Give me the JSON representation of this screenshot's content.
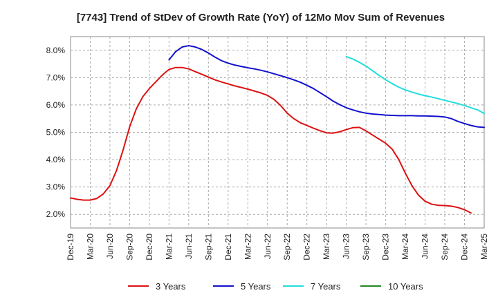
{
  "chart_data": {
    "type": "line",
    "title": "[7743]  Trend of StDev of Growth Rate (YoY) of 12Mo Mov Sum of Revenues",
    "xlabel": "",
    "ylabel": "",
    "ylim": [
      1.5,
      8.5
    ],
    "y_ticks": [
      2.0,
      3.0,
      4.0,
      5.0,
      6.0,
      7.0,
      8.0
    ],
    "y_tick_labels": [
      "2.0%",
      "3.0%",
      "4.0%",
      "5.0%",
      "6.0%",
      "7.0%",
      "8.0%"
    ],
    "x_tick_labels": [
      "Dec-19",
      "Mar-20",
      "Jun-20",
      "Sep-20",
      "Dec-20",
      "Mar-21",
      "Jun-21",
      "Sep-21",
      "Dec-21",
      "Mar-22",
      "Jun-22",
      "Sep-22",
      "Dec-22",
      "Mar-23",
      "Jun-23",
      "Sep-23",
      "Dec-23",
      "Mar-24",
      "Jun-24",
      "Sep-24",
      "Dec-24",
      "Mar-25"
    ],
    "grid": true,
    "legend_position": "bottom",
    "series": [
      {
        "name": "3 Years",
        "color": "#dd1111",
        "start_index": 0,
        "values": [
          2.6,
          2.55,
          2.52,
          2.52,
          2.58,
          2.75,
          3.05,
          3.6,
          4.35,
          5.2,
          5.85,
          6.3,
          6.6,
          6.85,
          7.1,
          7.3,
          7.37,
          7.37,
          7.32,
          7.22,
          7.12,
          7.02,
          6.92,
          6.84,
          6.77,
          6.7,
          6.64,
          6.58,
          6.51,
          6.44,
          6.35,
          6.2,
          5.98,
          5.7,
          5.5,
          5.35,
          5.25,
          5.15,
          5.06,
          4.98,
          4.97,
          5.02,
          5.1,
          5.17,
          5.18,
          5.05,
          4.9,
          4.75,
          4.6,
          4.38,
          4.0,
          3.5,
          3.05,
          2.7,
          2.48,
          2.37,
          2.33,
          2.32,
          2.3,
          2.25,
          2.17,
          2.05
        ]
      },
      {
        "name": "5 Years",
        "color": "#1111cc",
        "start_index": 15,
        "values": [
          7.65,
          7.95,
          8.12,
          8.17,
          8.12,
          8.03,
          7.9,
          7.75,
          7.62,
          7.53,
          7.46,
          7.41,
          7.36,
          7.32,
          7.27,
          7.21,
          7.14,
          7.07,
          7.0,
          6.92,
          6.83,
          6.72,
          6.6,
          6.45,
          6.3,
          6.14,
          6.01,
          5.9,
          5.82,
          5.75,
          5.7,
          5.67,
          5.65,
          5.63,
          5.62,
          5.61,
          5.61,
          5.61,
          5.6,
          5.6,
          5.59,
          5.58,
          5.56,
          5.5,
          5.4,
          5.32,
          5.25,
          5.2,
          5.18
        ]
      },
      {
        "name": "7 Years",
        "color": "#22dddd",
        "start_index": 42,
        "values": [
          7.77,
          7.68,
          7.56,
          7.42,
          7.25,
          7.08,
          6.92,
          6.78,
          6.65,
          6.55,
          6.47,
          6.4,
          6.34,
          6.29,
          6.23,
          6.17,
          6.11,
          6.05,
          5.98,
          5.9,
          5.82,
          5.69
        ]
      },
      {
        "name": "10 Years",
        "color": "#228822",
        "start_index": 0,
        "values": []
      }
    ]
  }
}
